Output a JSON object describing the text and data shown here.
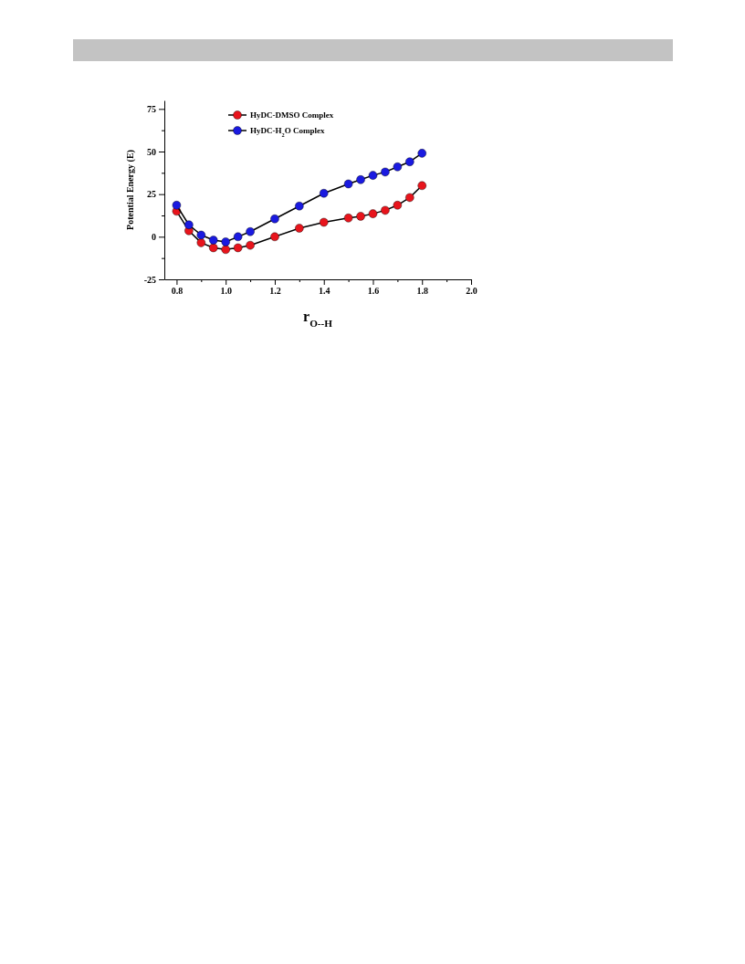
{
  "chart_data": {
    "type": "line",
    "xlabel": "r$_{O--H}$",
    "ylabel": "Potential Energy (E)",
    "xlim": [
      0.75,
      2.0
    ],
    "xticks": [
      {
        "value": 0.7999,
        "label": "0.8"
      },
      {
        "value": 0.9,
        "label": null
      },
      {
        "value": 1.0,
        "label": "1.0"
      },
      {
        "value": 1.1,
        "label": null
      },
      {
        "value": 1.2,
        "label": "1.2"
      },
      {
        "value": 1.3,
        "label": null
      },
      {
        "value": 1.4,
        "label": "1.4"
      },
      {
        "value": 1.5,
        "label": null
      },
      {
        "value": 1.6,
        "label": "1.6"
      },
      {
        "value": 1.7,
        "label": null
      },
      {
        "value": 1.8,
        "label": "1.8"
      },
      {
        "value": 1.9,
        "label": null
      },
      {
        "value": 2.0,
        "label": "2.0"
      }
    ],
    "ylim": [
      -25,
      80
    ],
    "yticks": [
      -25,
      {
        "value": -12.5,
        "label": null
      },
      0,
      {
        "value": 12.5,
        "label": null
      },
      25,
      {
        "value": 37.5,
        "label": null
      },
      50,
      {
        "value": 62.5,
        "label": null
      },
      75
    ],
    "x": [
      0.8,
      0.85,
      0.9,
      0.95,
      1.0,
      1.05,
      1.1,
      1.2,
      1.3,
      1.4,
      1.5,
      1.55,
      1.6,
      1.65,
      1.7,
      1.75,
      1.8
    ],
    "series": [
      {
        "name": "HyDC-DMSO Complex",
        "color": "#e8141c",
        "values": [
          15,
          3.5,
          -3.5,
          -6.5,
          -7.5,
          -6.5,
          -5,
          0,
          5,
          8.5,
          11,
          12,
          13.5,
          15.5,
          18.5,
          23,
          30
        ]
      },
      {
        "name": "HyDC-H$_{2}$O Complex",
        "color": "#1a1ae0",
        "values": [
          18.5,
          7,
          1,
          -2,
          -3,
          0,
          3,
          10.5,
          18,
          25.5,
          31,
          33.5,
          36,
          38,
          41,
          44,
          49
        ]
      }
    ],
    "marker": "circle",
    "line_style": "solid",
    "legend": "top left",
    "grid": false
  }
}
